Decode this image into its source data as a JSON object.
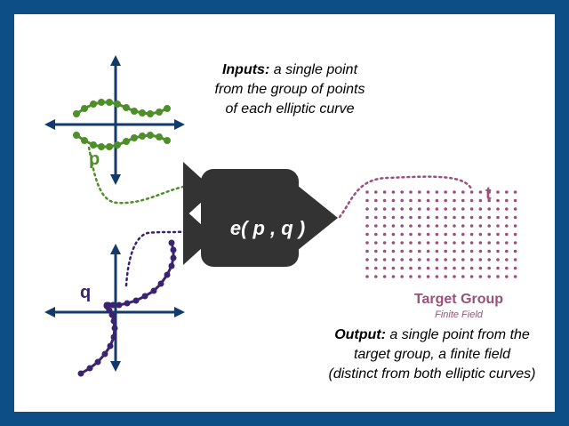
{
  "inputs": {
    "label": "Inputs:",
    "line1": "a single point",
    "line2": "from the group of points",
    "line3": "of each elliptic curve"
  },
  "points": {
    "p": "p",
    "q": "q",
    "t": "t"
  },
  "function_label": "e( p , q )",
  "target": {
    "title": "Target Group",
    "subtitle": "Finite Field"
  },
  "output": {
    "label": "Output:",
    "line1": "a single point from the",
    "line2": "target group, a finite field",
    "line3": "(distinct from both elliptic curves)"
  },
  "colors": {
    "frame": "#0d4e86",
    "axis": "#123a6b",
    "curve_p": "#4e8f2a",
    "curve_q": "#3a2470",
    "target": "#9c4f78",
    "box": "#333333"
  }
}
